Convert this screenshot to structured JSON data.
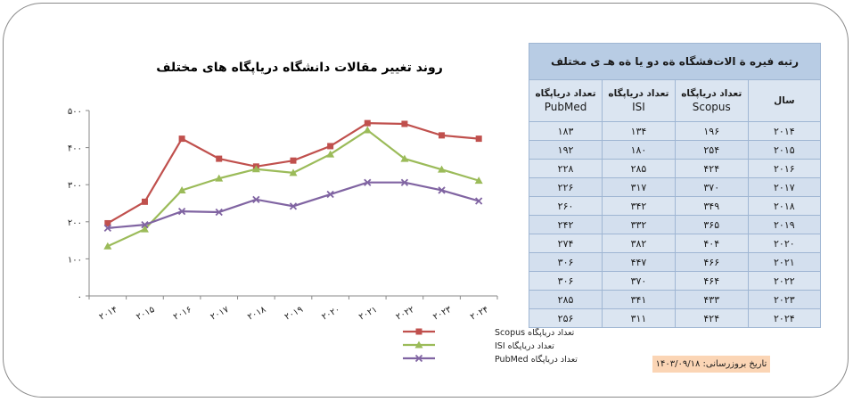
{
  "chart_data": {
    "type": "line",
    "title": "روند تغییر مقالات دانشگاه دریاپگاه های مختلف",
    "categories": [
      "۲۰۱۴",
      "۲۰۱۵",
      "۲۰۱۶",
      "۲۰۱۷",
      "۲۰۱۸",
      "۲۰۱۹",
      "۲۰۲۰",
      "۲۰۲۱",
      "۲۰۲۲",
      "۲۰۲۳",
      "۲۰۲۴"
    ],
    "y_ticks": [
      "۰",
      "۱۰۰",
      "۲۰۰",
      "۳۰۰",
      "۴۰۰",
      "۵۰۰"
    ],
    "ylim": [
      0,
      500
    ],
    "grid": false,
    "legend_position": "bottom-right",
    "series": [
      {
        "name": "تعداد دریاپگاه Scopus",
        "color": "#c0504d",
        "marker": "square",
        "values": [
          196,
          254,
          424,
          370,
          349,
          365,
          404,
          466,
          464,
          433,
          424
        ]
      },
      {
        "name": "تعداد دریاپگاه ISI",
        "color": "#9bbb59",
        "marker": "triangle",
        "values": [
          134,
          180,
          285,
          317,
          342,
          332,
          382,
          447,
          370,
          341,
          311
        ]
      },
      {
        "name": "تعداد دریاپگاه PubMed",
        "color": "#8064a2",
        "marker": "x",
        "values": [
          183,
          192,
          228,
          226,
          260,
          242,
          274,
          306,
          306,
          285,
          256
        ]
      }
    ]
  },
  "table": {
    "title": "رتبه فیرە ة الات‌فشگاه ةه دو يا‌ ةه هـ ى مختلف",
    "headers": [
      {
        "line1": "سال",
        "line2": ""
      },
      {
        "line1": "تعداد دریاپگاه",
        "line2": "Scopus"
      },
      {
        "line1": "تعداد دریاپگاه",
        "line2": "ISI"
      },
      {
        "line1": "تعداد دریاپگاه",
        "line2": "PubMed"
      }
    ],
    "rows": [
      [
        "۲۰۱۴",
        "۱۹۶",
        "۱۳۴",
        "۱۸۳"
      ],
      [
        "۲۰۱۵",
        "۲۵۴",
        "۱۸۰",
        "۱۹۲"
      ],
      [
        "۲۰۱۶",
        "۴۲۴",
        "۲۸۵",
        "۲۲۸"
      ],
      [
        "۲۰۱۷",
        "۳۷۰",
        "۳۱۷",
        "۲۲۶"
      ],
      [
        "۲۰۱۸",
        "۳۴۹",
        "۳۴۲",
        "۲۶۰"
      ],
      [
        "۲۰۱۹",
        "۳۶۵",
        "۳۳۲",
        "۲۴۲"
      ],
      [
        "۲۰۲۰",
        "۴۰۴",
        "۳۸۲",
        "۲۷۴"
      ],
      [
        "۲۰۲۱",
        "۴۶۶",
        "۴۴۷",
        "۳۰۶"
      ],
      [
        "۲۰۲۲",
        "۴۶۴",
        "۳۷۰",
        "۳۰۶"
      ],
      [
        "۲۰۲۳",
        "۴۳۳",
        "۳۴۱",
        "۲۸۵"
      ],
      [
        "۲۰۲۴",
        "۴۲۴",
        "۳۱۱",
        "۲۵۶"
      ]
    ]
  },
  "update_note": "تاریخ بروزرسانی: ۱۴۰۳/۰۹/۱۸"
}
